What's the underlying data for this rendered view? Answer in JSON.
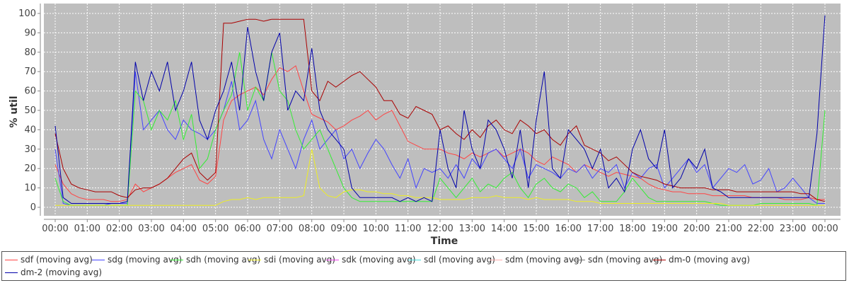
{
  "chart_data": {
    "type": "line",
    "xlabel": "Time",
    "ylabel": "% util",
    "ylim": [
      0,
      100
    ],
    "yticks": [
      0,
      10,
      20,
      30,
      40,
      50,
      60,
      70,
      80,
      90,
      100
    ],
    "xlim": [
      0,
      24
    ],
    "xticks": [
      "00:00",
      "01:00",
      "02:00",
      "03:00",
      "04:00",
      "05:00",
      "06:00",
      "07:00",
      "08:00",
      "09:00",
      "10:00",
      "11:00",
      "12:00",
      "13:00",
      "14:00",
      "15:00",
      "16:00",
      "17:00",
      "18:00",
      "19:00",
      "20:00",
      "21:00",
      "22:00",
      "23:00",
      "00:00"
    ],
    "grid": true,
    "legend_position": "bottom",
    "x_hours": [
      0,
      0.25,
      0.5,
      0.75,
      1,
      1.25,
      1.5,
      1.75,
      2,
      2.25,
      2.5,
      2.75,
      3,
      3.25,
      3.5,
      3.75,
      4,
      4.25,
      4.5,
      4.75,
      5,
      5.25,
      5.5,
      5.75,
      6,
      6.25,
      6.5,
      6.75,
      7,
      7.25,
      7.5,
      7.75,
      8,
      8.25,
      8.5,
      8.75,
      9,
      9.25,
      9.5,
      9.75,
      10,
      10.25,
      10.5,
      10.75,
      11,
      11.25,
      11.5,
      11.75,
      12,
      12.25,
      12.5,
      12.75,
      13,
      13.25,
      13.5,
      13.75,
      14,
      14.25,
      14.5,
      14.75,
      15,
      15.25,
      15.5,
      15.75,
      16,
      16.25,
      16.5,
      16.75,
      17,
      17.25,
      17.5,
      17.75,
      18,
      18.25,
      18.5,
      18.75,
      19,
      19.25,
      19.5,
      19.75,
      20,
      20.25,
      20.5,
      20.75,
      21,
      21.25,
      21.5,
      21.75,
      22,
      22.25,
      22.5,
      22.75,
      23,
      23.25,
      23.5,
      23.75,
      24
    ],
    "series": [
      {
        "name": "sdf (moving avg)",
        "color": "#ff4444",
        "values": [
          22,
          12,
          7,
          5,
          4,
          4,
          4,
          3,
          3,
          4,
          12,
          8,
          10,
          12,
          15,
          18,
          20,
          22,
          14,
          12,
          16,
          45,
          55,
          58,
          60,
          62,
          58,
          66,
          72,
          70,
          73,
          60,
          48,
          46,
          44,
          40,
          42,
          45,
          47,
          50,
          45,
          48,
          50,
          42,
          34,
          32,
          30,
          30,
          30,
          28,
          27,
          25,
          28,
          26,
          28,
          30,
          26,
          28,
          30,
          28,
          24,
          22,
          26,
          24,
          22,
          18,
          22,
          20,
          18,
          16,
          18,
          17,
          16,
          15,
          12,
          10,
          9,
          8,
          8,
          7,
          7,
          7,
          6,
          6,
          6,
          6,
          6,
          5,
          5,
          5,
          5,
          4,
          4,
          4,
          5,
          4,
          4
        ]
      },
      {
        "name": "sdg (moving avg)",
        "color": "#4444ff",
        "values": [
          30,
          2,
          1,
          1,
          1,
          1,
          1,
          2,
          2,
          2,
          70,
          40,
          45,
          50,
          40,
          35,
          45,
          40,
          38,
          35,
          40,
          50,
          65,
          40,
          45,
          55,
          35,
          25,
          40,
          30,
          20,
          35,
          45,
          30,
          35,
          40,
          25,
          30,
          20,
          28,
          35,
          30,
          22,
          15,
          25,
          10,
          20,
          18,
          20,
          15,
          22,
          15,
          25,
          20,
          28,
          30,
          25,
          20,
          30,
          15,
          22,
          20,
          18,
          15,
          20,
          18,
          22,
          15,
          20,
          18,
          22,
          10,
          18,
          15,
          20,
          22,
          10,
          15,
          20,
          25,
          18,
          22,
          10,
          15,
          20,
          18,
          22,
          12,
          14,
          20,
          8,
          10,
          15,
          10,
          5,
          2,
          2
        ]
      },
      {
        "name": "sdh (moving avg)",
        "color": "#33ee33",
        "values": [
          15,
          3,
          1,
          1,
          1,
          1,
          1,
          1,
          1,
          1,
          60,
          55,
          40,
          50,
          45,
          55,
          35,
          48,
          20,
          25,
          40,
          50,
          58,
          80,
          50,
          62,
          55,
          80,
          60,
          55,
          40,
          30,
          35,
          40,
          30,
          20,
          10,
          5,
          3,
          3,
          3,
          3,
          3,
          3,
          3,
          3,
          3,
          3,
          15,
          10,
          5,
          10,
          15,
          8,
          12,
          10,
          15,
          18,
          10,
          5,
          12,
          15,
          10,
          8,
          12,
          10,
          5,
          8,
          3,
          3,
          3,
          8,
          15,
          10,
          5,
          3,
          3,
          3,
          3,
          3,
          3,
          3,
          2,
          1,
          1,
          1,
          1,
          1,
          2,
          2,
          2,
          2,
          2,
          2,
          2,
          1,
          50
        ]
      },
      {
        "name": "sdi (moving avg)",
        "color": "#eeee22",
        "values": [
          1,
          1,
          1,
          1,
          1,
          1,
          1,
          1,
          1,
          1,
          1,
          1,
          1,
          1,
          1,
          1,
          1,
          1,
          1,
          1,
          1,
          3,
          4,
          4,
          5,
          4,
          5,
          5,
          5,
          5,
          5,
          6,
          30,
          10,
          6,
          5,
          8,
          9,
          9,
          8,
          8,
          7,
          7,
          6,
          6,
          5,
          5,
          5,
          4,
          4,
          4,
          4,
          5,
          5,
          5,
          6,
          5,
          5,
          5,
          4,
          5,
          4,
          4,
          4,
          4,
          3,
          3,
          3,
          2,
          2,
          2,
          2,
          2,
          2,
          2,
          2,
          2,
          2,
          2,
          2,
          2,
          2,
          2,
          2,
          1,
          1,
          1,
          1,
          1,
          1,
          1,
          1,
          1,
          1,
          1,
          1,
          1
        ]
      },
      {
        "name": "sdk (moving avg)",
        "color": "#ee44ee",
        "values": []
      },
      {
        "name": "sdl (moving avg)",
        "color": "#44dddd",
        "values": []
      },
      {
        "name": "sdm (moving avg)",
        "color": "#ffaaaa",
        "values": []
      },
      {
        "name": "sdn (moving avg)",
        "color": "#777777",
        "values": []
      },
      {
        "name": "dm-0 (moving avg)",
        "color": "#aa0000",
        "values": [
          38,
          20,
          12,
          10,
          9,
          8,
          8,
          8,
          6,
          5,
          9,
          10,
          10,
          12,
          15,
          20,
          25,
          28,
          18,
          14,
          18,
          95,
          95,
          96,
          97,
          97,
          96,
          97,
          97,
          97,
          97,
          97,
          60,
          55,
          65,
          62,
          65,
          68,
          70,
          66,
          62,
          55,
          55,
          48,
          46,
          52,
          50,
          48,
          40,
          42,
          38,
          35,
          40,
          36,
          42,
          45,
          40,
          38,
          45,
          42,
          38,
          40,
          35,
          32,
          38,
          42,
          32,
          30,
          28,
          24,
          26,
          22,
          18,
          16,
          15,
          14,
          12,
          11,
          10,
          10,
          10,
          10,
          9,
          9,
          9,
          8,
          8,
          8,
          8,
          8,
          8,
          8,
          8,
          7,
          7,
          4,
          3
        ]
      },
      {
        "name": "dm-2 (moving avg)",
        "color": "#0000aa",
        "values": [
          42,
          5,
          2,
          2,
          2,
          2,
          2,
          2,
          2,
          3,
          75,
          55,
          70,
          60,
          75,
          50,
          60,
          75,
          45,
          35,
          50,
          60,
          75,
          50,
          93,
          70,
          55,
          80,
          90,
          50,
          60,
          55,
          82,
          50,
          40,
          35,
          30,
          10,
          5,
          5,
          5,
          5,
          5,
          3,
          5,
          3,
          5,
          3,
          40,
          20,
          10,
          50,
          30,
          20,
          45,
          40,
          30,
          15,
          40,
          10,
          45,
          70,
          20,
          15,
          40,
          35,
          30,
          20,
          30,
          10,
          15,
          8,
          30,
          40,
          25,
          20,
          40,
          10,
          15,
          25,
          20,
          30,
          10,
          8,
          5,
          5,
          5,
          5,
          5,
          5,
          5,
          5,
          5,
          5,
          5,
          38,
          99
        ]
      }
    ]
  }
}
